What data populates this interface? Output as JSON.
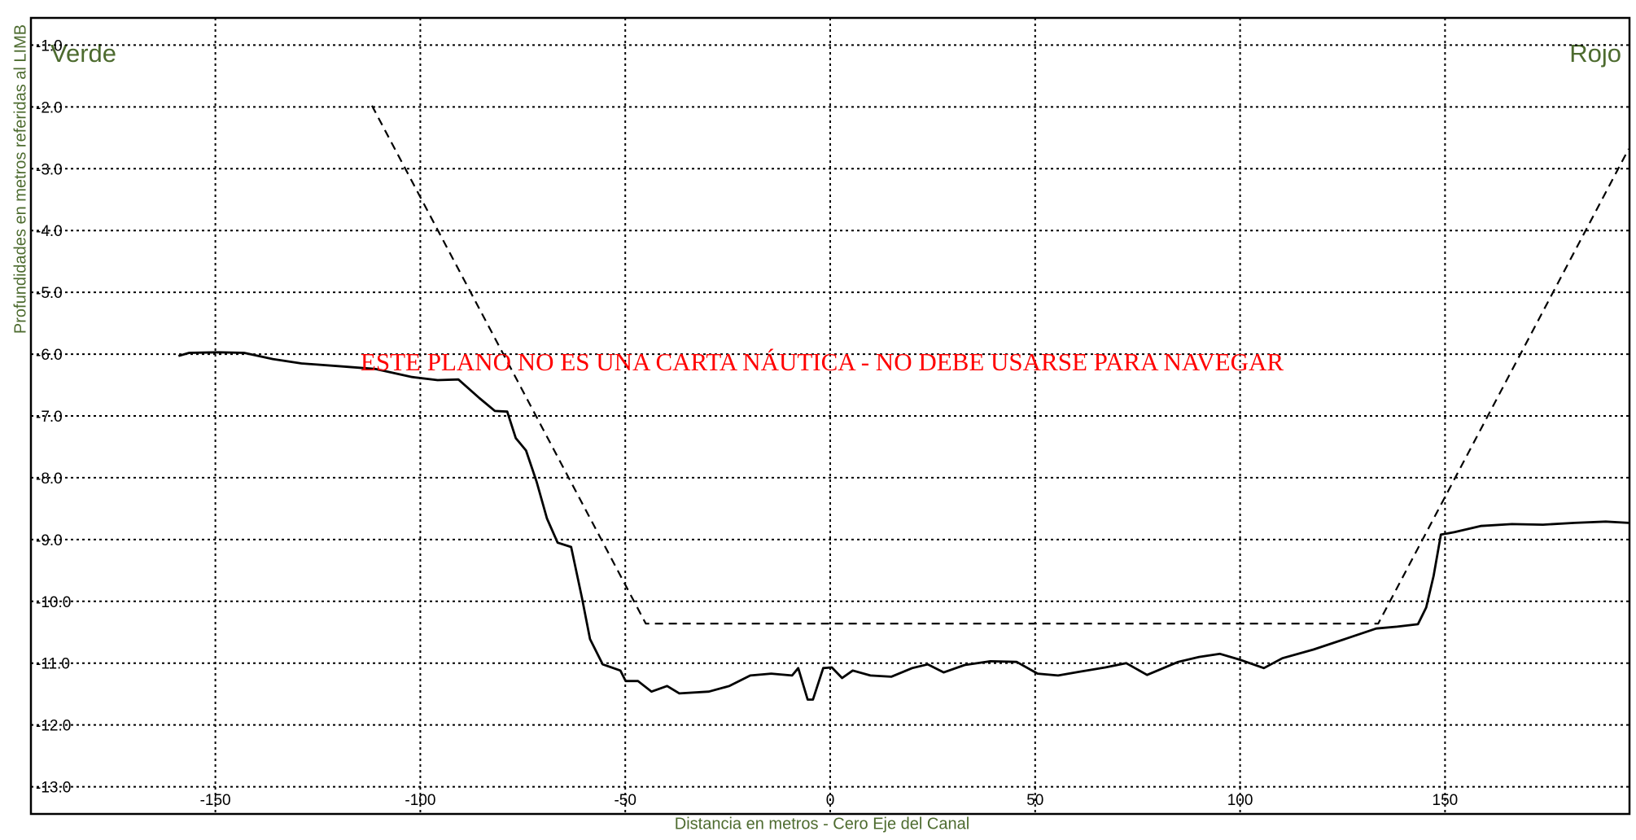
{
  "chart_data": {
    "type": "line",
    "x_label": "Distancia en metros - Cero Eje del Canal",
    "y_label": "Profundidades en metros referidas al LIMB",
    "annotations": [
      "Verde",
      "Rojo",
      "ESTE PLANO NO ES UNA CARTA NÁUTICA - NO DEBE USARSE PARA NAVEGAR"
    ],
    "xlim": [
      -195,
      195
    ],
    "ylim": [
      -13.44,
      -0.56
    ],
    "xticks": [
      -150,
      -100,
      -50,
      0,
      50,
      100,
      150
    ],
    "yticks": [
      {
        "value": -1,
        "label": "-1.0"
      },
      {
        "value": -2,
        "label": "-2.0"
      },
      {
        "value": -3,
        "label": "-3.0"
      },
      {
        "value": -4,
        "label": "-4.0"
      },
      {
        "value": -5,
        "label": "-5.0"
      },
      {
        "value": -6,
        "label": "-6.0"
      },
      {
        "value": -7,
        "label": "-7.0"
      },
      {
        "value": -8,
        "label": "-8.0"
      },
      {
        "value": -9,
        "label": "-9.0"
      },
      {
        "value": -10,
        "label": "-10.0"
      },
      {
        "value": -11,
        "label": "-11.0"
      },
      {
        "value": -12,
        "label": "-12.0"
      },
      {
        "value": -13,
        "label": "-13.0"
      }
    ],
    "grid": true,
    "series": [
      {
        "color": "#000000",
        "linestyle": "solid",
        "x": [
          -159,
          -156.4,
          -149.3,
          -143,
          -136,
          -129,
          -118.7,
          -111,
          -102,
          -95.8,
          -90.7,
          -85.6,
          -81.8,
          -78.8,
          -76.7,
          -74.2,
          -71.6,
          -69.1,
          -66.5,
          -63.2,
          -60.6,
          -58.6,
          -55.5,
          -51.2,
          -49.9,
          -46.9,
          -43.6,
          -39.8,
          -36.8,
          -29.6,
          -24.6,
          -19.5,
          -14.4,
          -9.3,
          -7.8,
          -5.5,
          -4.2,
          -1.7,
          0.4,
          2.9,
          5.5,
          9.8,
          14.9,
          20,
          23.8,
          27.7,
          32.8,
          39.1,
          45.5,
          50.6,
          55.6,
          60.7,
          67.1,
          72.2,
          77.3,
          84.9,
          90,
          95.1,
          100.2,
          105.8,
          110.3,
          117.9,
          125.6,
          133.2,
          138.3,
          143.4,
          145.4,
          147.2,
          149,
          152.3,
          158.7,
          166.3,
          173.9,
          181.6,
          189.2,
          194.8
        ],
        "values": [
          -6.03,
          -5.98,
          -5.97,
          -5.98,
          -6.08,
          -6.15,
          -6.2,
          -6.24,
          -6.37,
          -6.42,
          -6.41,
          -6.71,
          -6.92,
          -6.93,
          -7.36,
          -7.56,
          -8.07,
          -8.66,
          -9.05,
          -9.12,
          -9.93,
          -10.61,
          -11.02,
          -11.12,
          -11.29,
          -11.29,
          -11.46,
          -11.37,
          -11.49,
          -11.46,
          -11.37,
          -11.2,
          -11.17,
          -11.2,
          -11.08,
          -11.59,
          -11.59,
          -11.08,
          -11.07,
          -11.24,
          -11.12,
          -11.2,
          -11.22,
          -11.08,
          -11.02,
          -11.15,
          -11.03,
          -10.97,
          -10.98,
          -11.17,
          -11.2,
          -11.14,
          -11.07,
          -11.0,
          -11.19,
          -10.98,
          -10.9,
          -10.85,
          -10.95,
          -11.08,
          -10.92,
          -10.78,
          -10.61,
          -10.44,
          -10.41,
          -10.37,
          -10.1,
          -9.59,
          -8.92,
          -8.88,
          -8.78,
          -8.75,
          -8.76,
          -8.73,
          -8.71,
          -8.73
        ]
      },
      {
        "color": "#000000",
        "linestyle": "dashed",
        "x": [
          -111.8,
          -45,
          133.7,
          194.8
        ],
        "values": [
          -1.98,
          -10.36,
          -10.36,
          -2.68
        ]
      }
    ]
  }
}
